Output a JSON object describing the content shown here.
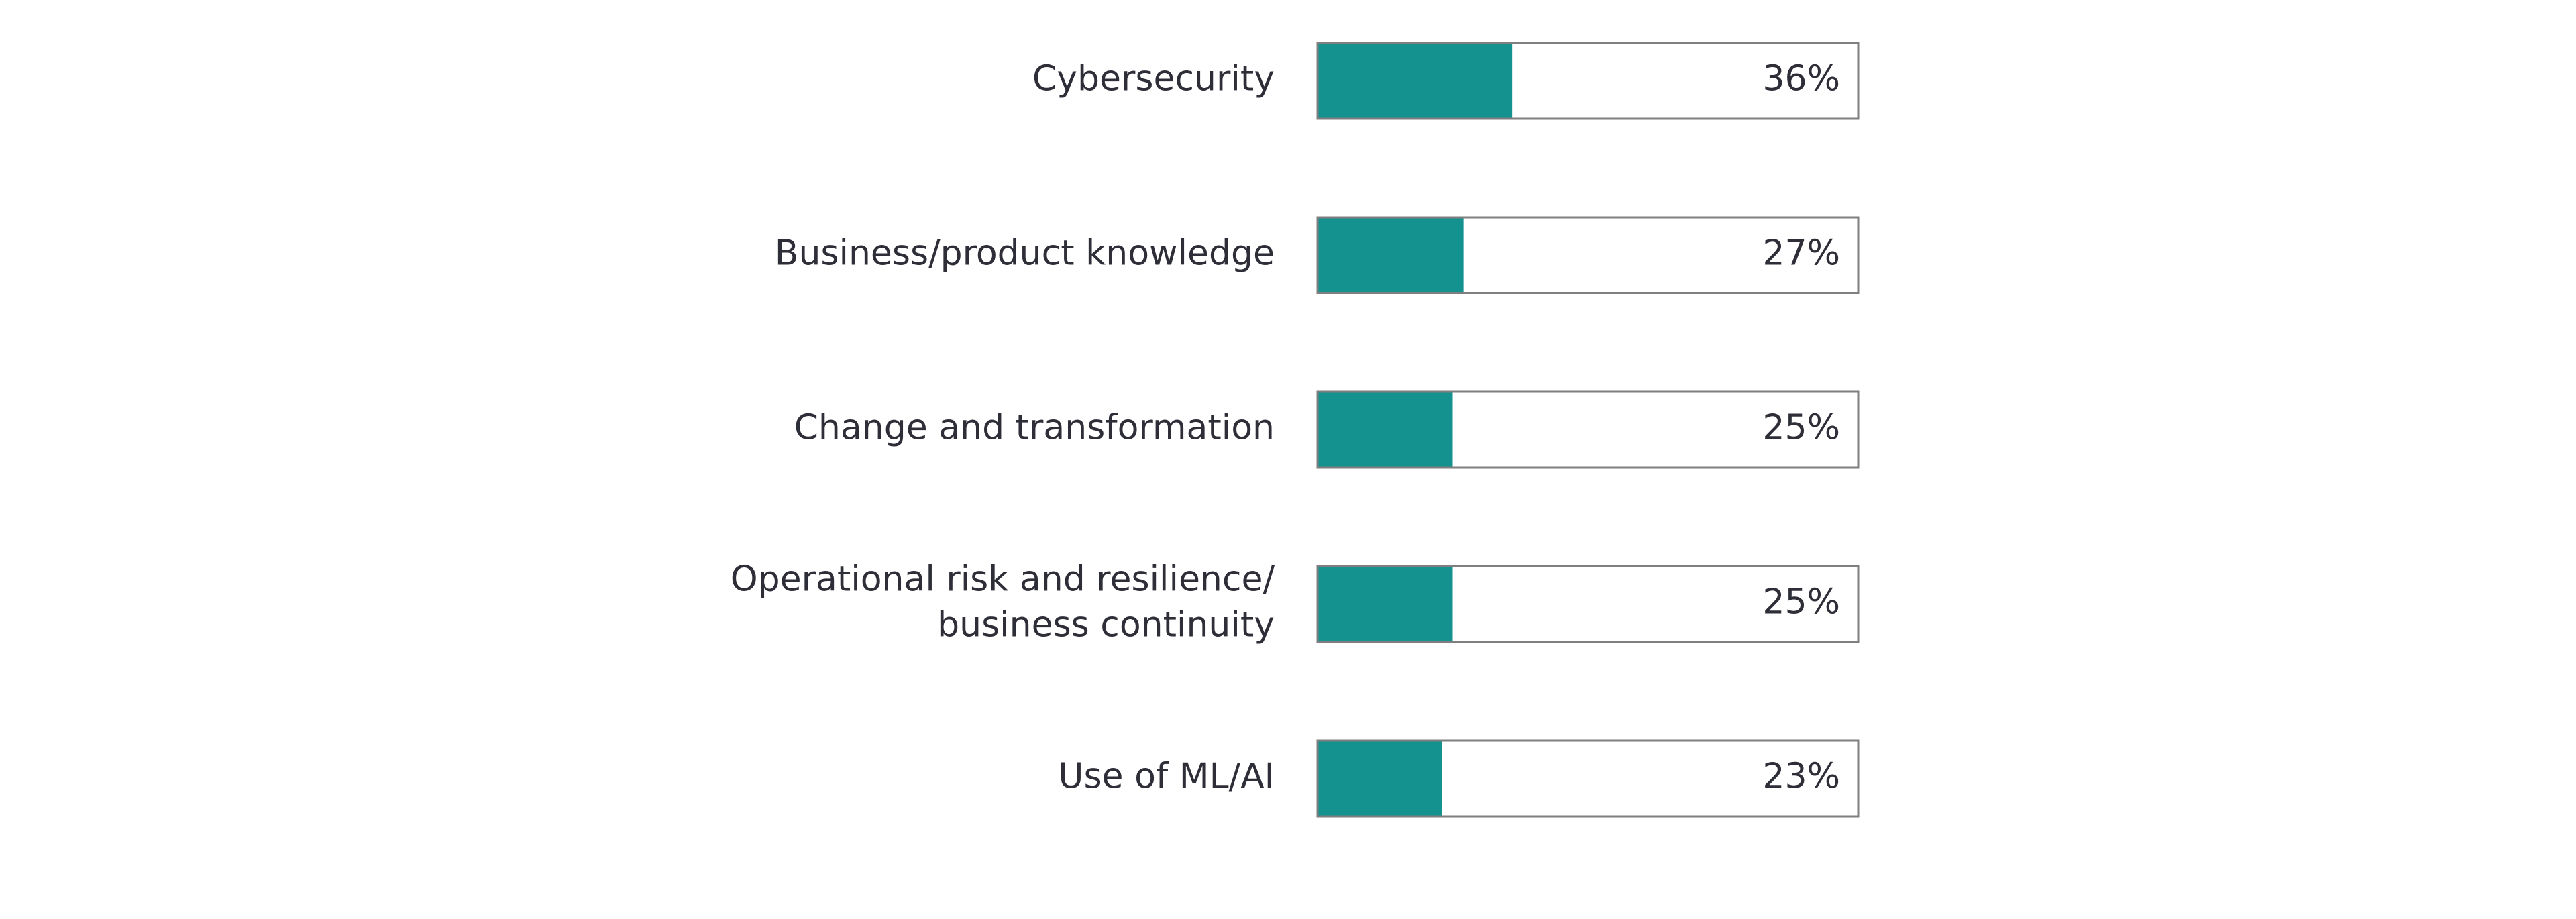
{
  "chart_data": {
    "type": "bar",
    "orientation": "horizontal",
    "categories": [
      "Cybersecurity",
      "Business/product knowledge",
      "Change and transformation",
      [
        "Operational risk and resilience/",
        "business continuity"
      ],
      "Use of ML/AI"
    ],
    "values": [
      36,
      27,
      25,
      25,
      23
    ],
    "value_labels": [
      "36%",
      "27%",
      "25%",
      "25%",
      "23%"
    ],
    "color": "#13928f",
    "xlim": [
      0,
      100
    ]
  }
}
